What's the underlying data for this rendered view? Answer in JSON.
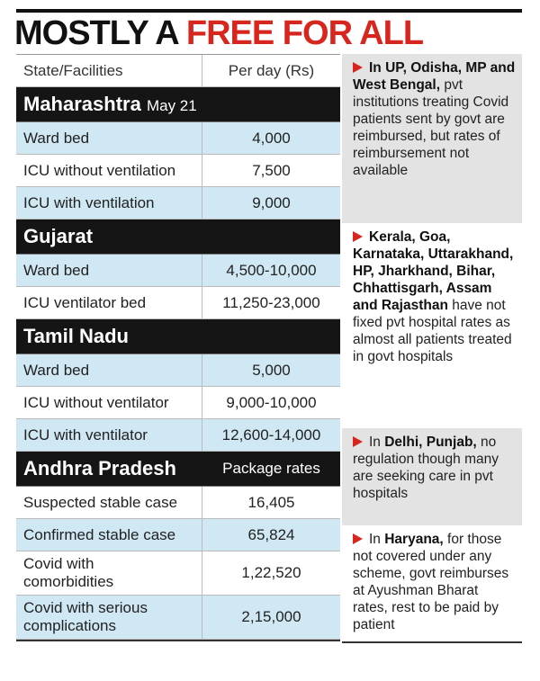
{
  "title": {
    "lead": "MOSTLY A",
    "highlight": "FREE FOR ALL"
  },
  "table": {
    "header": [
      "State/Facilities",
      "Per day (Rs)"
    ],
    "sections": [
      {
        "state": "Maharashtra",
        "note": "May 21",
        "first_row_shaded": true,
        "rows": [
          [
            "Ward bed",
            "4,000"
          ],
          [
            "ICU without ventilation",
            "7,500"
          ],
          [
            "ICU with ventilation",
            "9,000"
          ]
        ]
      },
      {
        "state": "Gujarat",
        "first_row_shaded": true,
        "rows": [
          [
            "Ward bed",
            "4,500-10,000"
          ],
          [
            "ICU ventilator bed",
            "11,250-23,000"
          ]
        ]
      },
      {
        "state": "Tamil Nadu",
        "first_row_shaded": true,
        "rows": [
          [
            "Ward bed",
            "5,000"
          ],
          [
            "ICU without ventilator",
            "9,000-10,000"
          ],
          [
            "ICU with ventilator",
            "12,600-14,000"
          ]
        ]
      },
      {
        "state": "Andhra Pradesh",
        "unit": "Package rates",
        "first_row_shaded": false,
        "rows": [
          [
            "Suspected stable case",
            "16,405"
          ],
          [
            "Confirmed stable case",
            "65,824"
          ],
          [
            "Covid with comorbidities",
            "1,22,520"
          ],
          [
            "Covid with serious complications",
            "2,15,000"
          ]
        ]
      }
    ]
  },
  "notes": [
    {
      "bold": "In UP, Odisha, MP and West Bengal,",
      "text": " pvt institutions treating Covid patients sent by govt are reimbursed, but rates of reimbursement not available",
      "shaded": true
    },
    {
      "bold": "Kerala, Goa, Karnataka, Uttarakhand, HP, Jharkhand, Bihar, Chhattisgarh, Assam and Rajasthan",
      "text": " have not fixed pvt hospital rates as almost all patients treated in govt hospitals",
      "shaded": false
    },
    {
      "lead": "In ",
      "bold": "Delhi, Punjab,",
      "text": " no regulation though many are seeking care in pvt hospitals",
      "shaded": true
    },
    {
      "lead": "In ",
      "bold": "Haryana,",
      "text": " for those not covered under any scheme, govt reimburses at Ayushman Bharat rates, rest to be paid by patient",
      "shaded": false
    }
  ]
}
